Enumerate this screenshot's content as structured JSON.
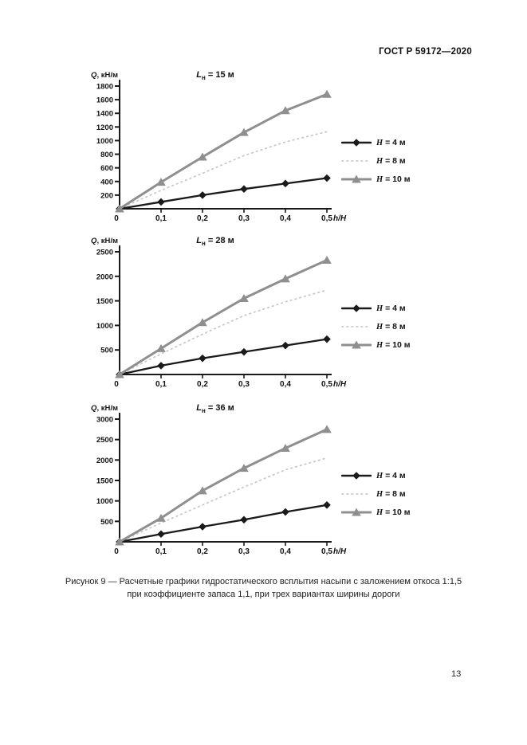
{
  "page": {
    "header": "ГОСТ Р 59172—2020",
    "page_number": "13",
    "caption": {
      "line1": "Рисунок 9 — Расчетные графики гидростатического всплытия насыпи с заложением откоса 1:1,5",
      "line2": "при коэффициенте запаса 1,1, при трех вариантах ширины дороги"
    }
  },
  "colors": {
    "axis": "#1a1a1a",
    "text": "#111111",
    "h4": "#1a1a1a",
    "h8": "#c9c9c9",
    "h10": "#8f8f8f"
  },
  "chart_data": [
    {
      "type": "line",
      "title": {
        "main": "L",
        "sub": "н",
        "rest": " = 15 м"
      },
      "ylabel": {
        "var": "Q",
        "rest": ", кН/м"
      },
      "xlabel": "h/H",
      "x": [
        0,
        0.1,
        0.2,
        0.3,
        0.4,
        0.5
      ],
      "xtick_labels": [
        "0",
        "0,1",
        "0,2",
        "0,3",
        "0,4",
        "0,5"
      ],
      "ylim": [
        0,
        1800
      ],
      "ytick_step": 200,
      "grid": false,
      "legend_position": "right",
      "series": [
        {
          "id": "h4",
          "name": {
            "var": "H",
            "rest": " = 4 м"
          },
          "marker": "diamond",
          "line": "solid",
          "color_key": "h4",
          "values": [
            0,
            100,
            200,
            290,
            370,
            450
          ]
        },
        {
          "id": "h8",
          "name": {
            "var": "H",
            "rest": " = 8 м"
          },
          "marker": "none",
          "line": "dotted",
          "color_key": "h8",
          "values": [
            0,
            270,
            520,
            780,
            980,
            1130
          ]
        },
        {
          "id": "h10",
          "name": {
            "var": "H",
            "rest": " = 10 м"
          },
          "marker": "triangle",
          "line": "solid",
          "color_key": "h10",
          "values": [
            0,
            390,
            760,
            1120,
            1440,
            1680
          ]
        }
      ]
    },
    {
      "type": "line",
      "title": {
        "main": "L",
        "sub": "н",
        "rest": " = 28 м"
      },
      "ylabel": {
        "var": "Q",
        "rest": ", кН/м"
      },
      "xlabel": "h/H",
      "x": [
        0,
        0.1,
        0.2,
        0.3,
        0.4,
        0.5
      ],
      "xtick_labels": [
        "0",
        "0,1",
        "0,2",
        "0,3",
        "0,4",
        "0,5"
      ],
      "ylim": [
        0,
        2500
      ],
      "ytick_step": 500,
      "grid": false,
      "legend_position": "right",
      "series": [
        {
          "id": "h4",
          "name": {
            "var": "H",
            "rest": " = 4 м"
          },
          "marker": "diamond",
          "line": "solid",
          "color_key": "h4",
          "values": [
            0,
            180,
            330,
            460,
            590,
            720
          ]
        },
        {
          "id": "h8",
          "name": {
            "var": "H",
            "rest": " = 8 м"
          },
          "marker": "none",
          "line": "dotted",
          "color_key": "h8",
          "values": [
            0,
            420,
            820,
            1200,
            1480,
            1720
          ]
        },
        {
          "id": "h10",
          "name": {
            "var": "H",
            "rest": " = 10 м"
          },
          "marker": "triangle",
          "line": "solid",
          "color_key": "h10",
          "values": [
            0,
            530,
            1060,
            1550,
            1950,
            2330
          ]
        }
      ]
    },
    {
      "type": "line",
      "title": {
        "main": "L",
        "sub": "н",
        "rest": " = 36 м"
      },
      "ylabel": {
        "var": "Q",
        "rest": ", кН/м"
      },
      "xlabel": "h/H",
      "x": [
        0,
        0.1,
        0.2,
        0.3,
        0.4,
        0.5
      ],
      "xtick_labels": [
        "0",
        "0,1",
        "0,2",
        "0,3",
        "0,4",
        "0,5"
      ],
      "ylim": [
        0,
        3000
      ],
      "ytick_step": 500,
      "grid": false,
      "legend_position": "right",
      "series": [
        {
          "id": "h4",
          "name": {
            "var": "H",
            "rest": " = 4 м"
          },
          "marker": "diamond",
          "line": "solid",
          "color_key": "h4",
          "values": [
            0,
            190,
            370,
            540,
            730,
            900
          ]
        },
        {
          "id": "h8",
          "name": {
            "var": "H",
            "rest": " = 8 м"
          },
          "marker": "none",
          "line": "dotted",
          "color_key": "h8",
          "values": [
            0,
            460,
            900,
            1340,
            1760,
            2050
          ]
        },
        {
          "id": "h10",
          "name": {
            "var": "H",
            "rest": " = 10 м"
          },
          "marker": "triangle",
          "line": "solid",
          "color_key": "h10",
          "values": [
            0,
            580,
            1250,
            1800,
            2290,
            2750
          ]
        }
      ]
    }
  ]
}
